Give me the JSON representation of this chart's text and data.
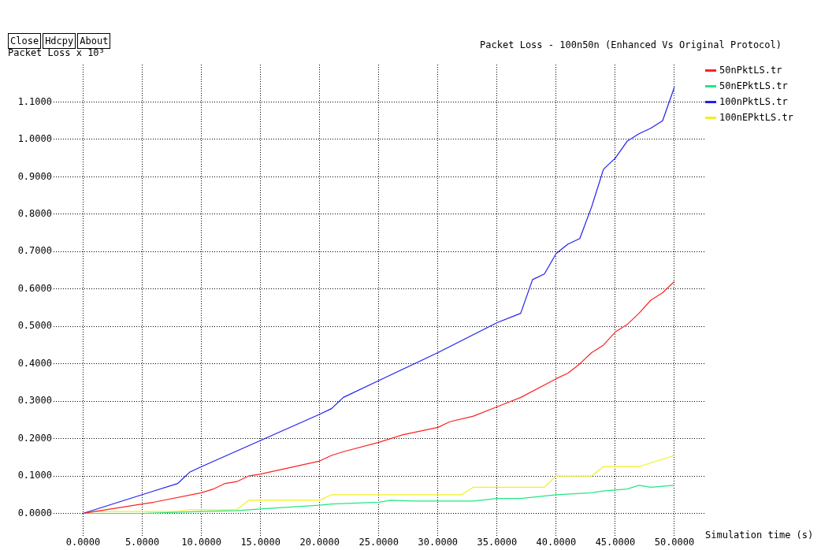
{
  "chart_data": {
    "type": "line",
    "title": "Packet Loss - 100n50n (Enhanced Vs Original Protocol)",
    "xlabel": "Simulation time (s)",
    "ylabel": "Packet Loss x 10³",
    "annotations": [
      "Close",
      "Hdcpy",
      "About"
    ],
    "xlim": [
      -2.5,
      52.6
    ],
    "ylim": [
      -0.06,
      1.2
    ],
    "xticks": [
      {
        "value": 0,
        "label": "0.0000"
      },
      {
        "value": 5,
        "label": "5.0000"
      },
      {
        "value": 10,
        "label": "10.0000"
      },
      {
        "value": 15,
        "label": "15.0000"
      },
      {
        "value": 20,
        "label": "20.0000"
      },
      {
        "value": 25,
        "label": "25.0000"
      },
      {
        "value": 30,
        "label": "30.0000"
      },
      {
        "value": 35,
        "label": "35.0000"
      },
      {
        "value": 40,
        "label": "40.0000"
      },
      {
        "value": 45,
        "label": "45.0000"
      },
      {
        "value": 50,
        "label": "50.0000"
      }
    ],
    "yticks": [
      {
        "value": 0,
        "label": "0.0000"
      },
      {
        "value": 0.1,
        "label": "0.1000"
      },
      {
        "value": 0.2,
        "label": "0.2000"
      },
      {
        "value": 0.3,
        "label": "0.3000"
      },
      {
        "value": 0.4,
        "label": "0.4000"
      },
      {
        "value": 0.5,
        "label": "0.5000"
      },
      {
        "value": 0.6,
        "label": "0.6000"
      },
      {
        "value": 0.7,
        "label": "0.7000"
      },
      {
        "value": 0.8,
        "label": "0.8000"
      },
      {
        "value": 0.9,
        "label": "0.9000"
      },
      {
        "value": 1.0,
        "label": "1.0000"
      },
      {
        "value": 1.1,
        "label": "1.1000"
      }
    ],
    "grid": true,
    "legend": "top right",
    "marker": "none",
    "line_style": "solid",
    "series": [
      {
        "name": "50nPktLS.tr",
        "color": "#ff2020",
        "x": [
          0,
          1,
          5,
          6,
          10,
          11,
          12,
          13,
          14,
          15,
          20,
          21,
          22,
          25,
          27,
          30,
          31,
          33,
          35,
          37,
          40,
          41,
          42,
          43,
          44,
          45,
          46,
          47,
          48,
          49,
          50
        ],
        "values": [
          0,
          0.005,
          0.025,
          0.03,
          0.055,
          0.065,
          0.08,
          0.085,
          0.1,
          0.105,
          0.14,
          0.155,
          0.165,
          0.19,
          0.21,
          0.23,
          0.245,
          0.26,
          0.285,
          0.31,
          0.36,
          0.375,
          0.4,
          0.43,
          0.45,
          0.485,
          0.505,
          0.535,
          0.57,
          0.59,
          0.62
        ]
      },
      {
        "name": "50nEPktLS.tr",
        "color": "#20e880",
        "x": [
          0,
          5,
          10,
          13,
          15,
          20,
          21,
          25,
          26,
          28,
          30,
          33,
          35,
          37,
          40,
          43,
          44,
          46,
          47,
          48,
          50
        ],
        "values": [
          0,
          0,
          0.005,
          0.007,
          0.012,
          0.022,
          0.025,
          0.03,
          0.035,
          0.033,
          0.033,
          0.033,
          0.04,
          0.04,
          0.05,
          0.055,
          0.06,
          0.065,
          0.075,
          0.07,
          0.075
        ]
      },
      {
        "name": "100nPktLS.tr",
        "color": "#2020f0",
        "x": [
          0,
          3,
          4,
          6,
          8,
          9,
          10,
          15,
          20,
          21,
          22,
          25,
          30,
          35,
          37,
          38,
          39,
          40,
          41,
          42,
          43,
          44,
          45,
          46,
          47,
          48,
          49,
          50
        ],
        "values": [
          0,
          0.03,
          0.04,
          0.06,
          0.08,
          0.11,
          0.125,
          0.195,
          0.265,
          0.28,
          0.31,
          0.355,
          0.43,
          0.51,
          0.535,
          0.625,
          0.64,
          0.695,
          0.72,
          0.735,
          0.82,
          0.92,
          0.95,
          0.995,
          1.015,
          1.03,
          1.05,
          1.14
        ]
      },
      {
        "name": "100nEPktLS.tr",
        "color": "#f0f020",
        "x": [
          0,
          1,
          8,
          9,
          13,
          14,
          20,
          21,
          32,
          33,
          39,
          40,
          43,
          44,
          47,
          50
        ],
        "values": [
          0,
          0.005,
          0.005,
          0.01,
          0.01,
          0.035,
          0.035,
          0.05,
          0.05,
          0.07,
          0.07,
          0.1,
          0.1,
          0.125,
          0.125,
          0.155
        ]
      }
    ]
  }
}
